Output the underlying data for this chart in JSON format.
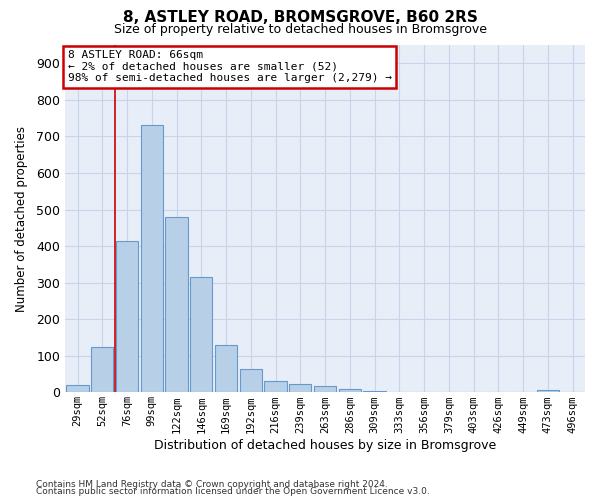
{
  "title": "8, ASTLEY ROAD, BROMSGROVE, B60 2RS",
  "subtitle": "Size of property relative to detached houses in Bromsgrove",
  "xlabel": "Distribution of detached houses by size in Bromsgrove",
  "ylabel": "Number of detached properties",
  "footnote1": "Contains HM Land Registry data © Crown copyright and database right 2024.",
  "footnote2": "Contains public sector information licensed under the Open Government Licence v3.0.",
  "bar_color": "#b8cfe8",
  "bar_edge_color": "#6699cc",
  "grid_color": "#c8d4e8",
  "vline_color": "#cc0000",
  "annotation_box_color": "#cc0000",
  "background_color": "#e8eef8",
  "categories": [
    "29sqm",
    "52sqm",
    "76sqm",
    "99sqm",
    "122sqm",
    "146sqm",
    "169sqm",
    "192sqm",
    "216sqm",
    "239sqm",
    "263sqm",
    "286sqm",
    "309sqm",
    "333sqm",
    "356sqm",
    "379sqm",
    "403sqm",
    "426sqm",
    "449sqm",
    "473sqm",
    "496sqm"
  ],
  "values": [
    20,
    125,
    415,
    730,
    480,
    315,
    130,
    65,
    30,
    22,
    18,
    10,
    3,
    0,
    0,
    0,
    0,
    0,
    0,
    5,
    0
  ],
  "vline_x": 1.5,
  "annotation_line1": "8 ASTLEY ROAD: 66sqm",
  "annotation_line2": "← 2% of detached houses are smaller (52)",
  "annotation_line3": "98% of semi-detached houses are larger (2,279) →",
  "ylim_max": 950,
  "yticks": [
    0,
    100,
    200,
    300,
    400,
    500,
    600,
    700,
    800,
    900
  ]
}
